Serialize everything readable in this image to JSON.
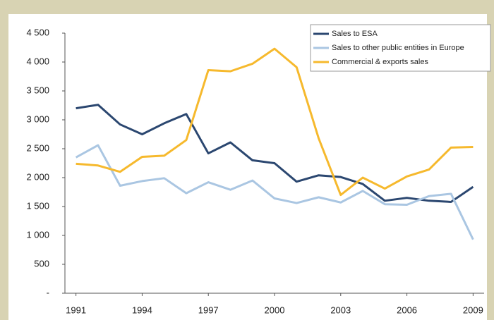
{
  "chart_data": {
    "type": "line",
    "x": [
      1991,
      1992,
      1993,
      1994,
      1995,
      1996,
      1997,
      1998,
      1999,
      2000,
      2001,
      2002,
      2003,
      2004,
      2005,
      2006,
      2007,
      2008,
      2009
    ],
    "series": [
      {
        "name": "Sales to ESA",
        "color": "#2b4770",
        "values": [
          3200,
          3260,
          2920,
          2750,
          2940,
          3100,
          2420,
          2610,
          2300,
          2250,
          1930,
          2040,
          2010,
          1890,
          1600,
          1650,
          1600,
          1580,
          1840
        ]
      },
      {
        "name": "Sales to other public entities in Europe",
        "color": "#aac6e2",
        "values": [
          2350,
          2560,
          1860,
          1940,
          1990,
          1730,
          1920,
          1790,
          1950,
          1640,
          1560,
          1660,
          1570,
          1770,
          1540,
          1530,
          1680,
          1720,
          930
        ]
      },
      {
        "name": "Commercial & exports sales",
        "color": "#f6b92d",
        "values": [
          2240,
          2210,
          2100,
          2360,
          2380,
          2650,
          3860,
          3840,
          3970,
          4230,
          3910,
          2680,
          1700,
          2000,
          1810,
          2020,
          2140,
          2520,
          2530
        ]
      }
    ],
    "xlim": [
      1990.5,
      2009.5
    ],
    "xticks": [
      1991,
      1994,
      1997,
      2000,
      2003,
      2006,
      2009
    ],
    "ylim": [
      0,
      4500
    ],
    "yticks": [
      {
        "value": 0,
        "label": "-"
      },
      500,
      {
        "value": 1000,
        "label": "1 000"
      },
      {
        "value": 1500,
        "label": "1 500"
      },
      {
        "value": 2000,
        "label": "2 000"
      },
      {
        "value": 2500,
        "label": "2 500"
      },
      {
        "value": 3000,
        "label": "3 000"
      },
      {
        "value": 3500,
        "label": "3 500"
      },
      {
        "value": 4000,
        "label": "4 000"
      },
      {
        "value": 4500,
        "label": "4 500"
      }
    ],
    "legend": "upper right"
  }
}
